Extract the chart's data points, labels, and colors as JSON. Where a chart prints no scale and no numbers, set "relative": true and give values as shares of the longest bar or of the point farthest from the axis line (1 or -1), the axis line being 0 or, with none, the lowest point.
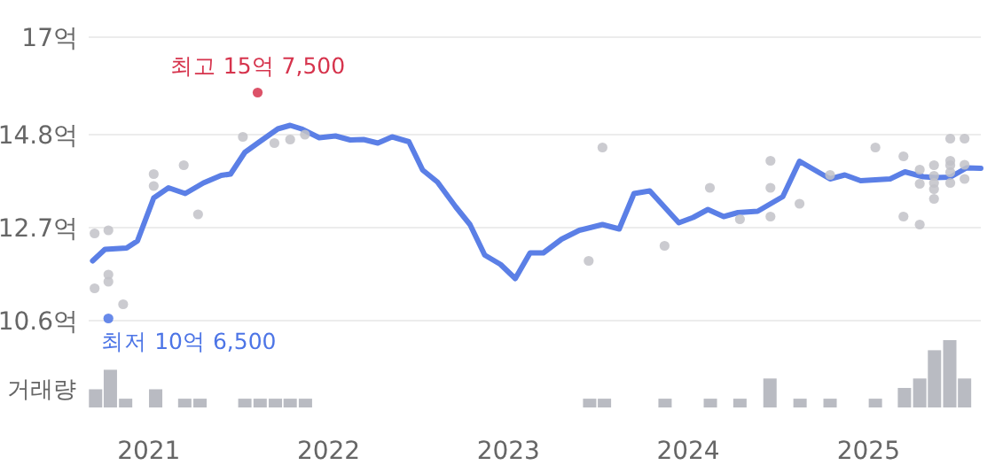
{
  "chart_data": [
    {
      "type": "line",
      "xlim": [
        "2020-09-01",
        "2025-08-17"
      ],
      "ylim": [
        10.6,
        17
      ],
      "yticks": [
        {
          "value": 10.6,
          "label": "10.6억"
        },
        {
          "value": 12.7,
          "label": "12.7억"
        },
        {
          "value": 14.8,
          "label": "14.8억"
        },
        {
          "value": 17,
          "label": "17억"
        }
      ],
      "grid": "y",
      "tick_labels": "y",
      "series": [
        {
          "color": "#5b7fe6",
          "line_style": "solid",
          "x": [
            "2020-09-09",
            "2020-10-04",
            "2020-11-17",
            "2020-12-09",
            "2021-01-11",
            "2021-02-10",
            "2021-03-16",
            "2021-04-22",
            "2021-05-28",
            "2021-06-16",
            "2021-07-15",
            "2021-08-14",
            "2021-09-20",
            "2021-10-15",
            "2021-11-07",
            "2021-12-13",
            "2022-01-15",
            "2022-02-14",
            "2022-03-13",
            "2022-04-11",
            "2022-05-10",
            "2022-06-13",
            "2022-07-11",
            "2022-08-10",
            "2022-09-16",
            "2022-10-15",
            "2022-11-14",
            "2022-12-16",
            "2023-01-15",
            "2023-02-14",
            "2023-03-13",
            "2023-04-19",
            "2023-05-25",
            "2023-07-11",
            "2023-08-14",
            "2023-09-13",
            "2023-10-15",
            "2023-12-13",
            "2024-01-11",
            "2024-02-10",
            "2024-03-13",
            "2024-04-11",
            "2024-05-21",
            "2024-07-11",
            "2024-08-14",
            "2024-10-15",
            "2024-11-14",
            "2024-12-16",
            "2025-02-14",
            "2025-03-16",
            "2025-04-22",
            "2025-05-17",
            "2025-06-16",
            "2025-07-19",
            "2025-08-17"
          ],
          "values": [
            11.95,
            12.21,
            12.24,
            12.4,
            13.37,
            13.6,
            13.47,
            13.71,
            13.88,
            13.91,
            14.4,
            14.64,
            14.93,
            15.01,
            14.93,
            14.73,
            14.77,
            14.68,
            14.69,
            14.61,
            14.75,
            14.64,
            14.0,
            13.73,
            13.17,
            12.77,
            12.08,
            11.87,
            11.55,
            12.13,
            12.13,
            12.44,
            12.64,
            12.77,
            12.67,
            13.47,
            13.53,
            12.81,
            12.93,
            13.11,
            12.95,
            13.04,
            13.07,
            13.4,
            14.2,
            13.8,
            13.89,
            13.76,
            13.8,
            13.96,
            13.85,
            13.83,
            13.84,
            14.05,
            14.04
          ]
        },
        {
          "type": "scatter",
          "color": "#c2c2c8",
          "marker": "circle",
          "x": [
            "2020-09-13",
            "2020-09-13",
            "2020-10-11",
            "2020-10-11",
            "2020-10-11",
            "2020-11-10",
            "2021-01-11",
            "2021-01-11",
            "2021-03-13",
            "2021-04-11",
            "2021-07-11",
            "2021-09-13",
            "2021-10-15",
            "2021-11-14",
            "2023-06-13",
            "2023-07-11",
            "2023-11-14",
            "2024-02-14",
            "2024-04-15",
            "2024-06-16",
            "2024-06-16",
            "2024-06-16",
            "2024-08-14",
            "2024-10-15",
            "2025-01-15",
            "2025-03-13",
            "2025-03-13",
            "2025-04-15",
            "2025-04-15",
            "2025-04-15",
            "2025-05-14",
            "2025-05-14",
            "2025-05-14",
            "2025-05-14",
            "2025-05-14",
            "2025-06-16",
            "2025-06-16",
            "2025-06-16",
            "2025-06-16",
            "2025-06-16",
            "2025-07-15",
            "2025-07-15",
            "2025-07-15"
          ],
          "values": [
            12.57,
            11.33,
            12.64,
            11.64,
            11.48,
            10.97,
            13.91,
            13.64,
            14.11,
            13.0,
            14.75,
            14.61,
            14.69,
            14.8,
            11.95,
            14.51,
            12.29,
            13.6,
            12.89,
            14.21,
            13.6,
            12.95,
            13.24,
            13.89,
            14.51,
            14.31,
            12.95,
            14.01,
            13.69,
            12.77,
            14.11,
            13.87,
            13.71,
            13.57,
            13.35,
            14.71,
            14.21,
            14.11,
            13.95,
            13.71,
            14.71,
            14.12,
            13.8
          ]
        },
        {
          "type": "scatter",
          "color": "#d6344d",
          "marker": "circle",
          "x": [
            "2021-08-10"
          ],
          "values": [
            15.75
          ]
        },
        {
          "type": "scatter",
          "color": "#4d75e6",
          "marker": "circle",
          "x": [
            "2020-10-11"
          ],
          "values": [
            10.65
          ]
        }
      ],
      "annotations": [
        {
          "text": "최고 15억 7,500",
          "x": "2021-08-10",
          "y": 15.75
        },
        {
          "text": "최저 10억 6,500",
          "x": "2020-10-11",
          "y": 10.65
        }
      ]
    },
    {
      "type": "bar",
      "relative": true,
      "ylabel": "거래량",
      "xlim": [
        "2020-09-01",
        "2025-08-17"
      ],
      "xticks": [
        {
          "value": "2021-01-01",
          "label": "2021"
        },
        {
          "value": "2022-01-01",
          "label": "2022"
        },
        {
          "value": "2023-01-01",
          "label": "2023"
        },
        {
          "value": "2024-01-01",
          "label": "2024"
        },
        {
          "value": "2025-01-01",
          "label": "2025"
        }
      ],
      "tick_labels": "x",
      "color": "#b9bbc2",
      "x": [
        "2020-09",
        "2020-10",
        "2020-11",
        "2021-01",
        "2021-03",
        "2021-04",
        "2021-07",
        "2021-08",
        "2021-09",
        "2021-10",
        "2021-11",
        "2023-06",
        "2023-07",
        "2023-11",
        "2024-02",
        "2024-04",
        "2024-06",
        "2024-08",
        "2024-10",
        "2025-01",
        "2025-03",
        "2025-04",
        "2025-05",
        "2025-06",
        "2025-07"
      ],
      "values": [
        0.27,
        0.56,
        0.13,
        0.27,
        0.13,
        0.13,
        0.13,
        0.13,
        0.13,
        0.13,
        0.13,
        0.13,
        0.13,
        0.13,
        0.13,
        0.13,
        0.43,
        0.13,
        0.13,
        0.13,
        0.29,
        0.43,
        0.85,
        1,
        0.43
      ]
    }
  ]
}
